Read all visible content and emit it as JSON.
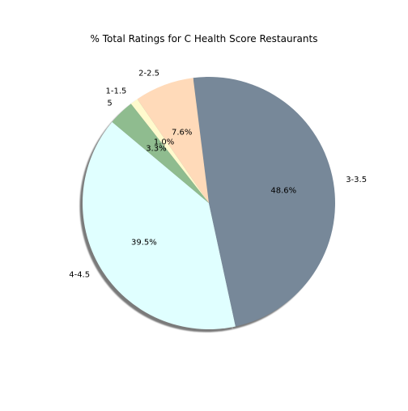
{
  "chart_data": {
    "type": "pie",
    "title": "% Total Ratings for C Health Score Restaurants",
    "categories": [
      "4-4.5",
      "3-3.5",
      "2-2.5",
      "1-1.5",
      "5"
    ],
    "values": [
      39.5,
      48.6,
      7.6,
      1.0,
      3.3
    ],
    "pct_labels": [
      "39.5%",
      "48.6%",
      "7.6%",
      "1.0%",
      "3.3%"
    ],
    "colors": [
      "#e0ffff",
      "#778899",
      "#ffdab9",
      "#fffacd",
      "#8fbc8f"
    ],
    "start_angle_deg": 140,
    "direction": "counterclockwise",
    "shadow": true,
    "legend": "none"
  }
}
